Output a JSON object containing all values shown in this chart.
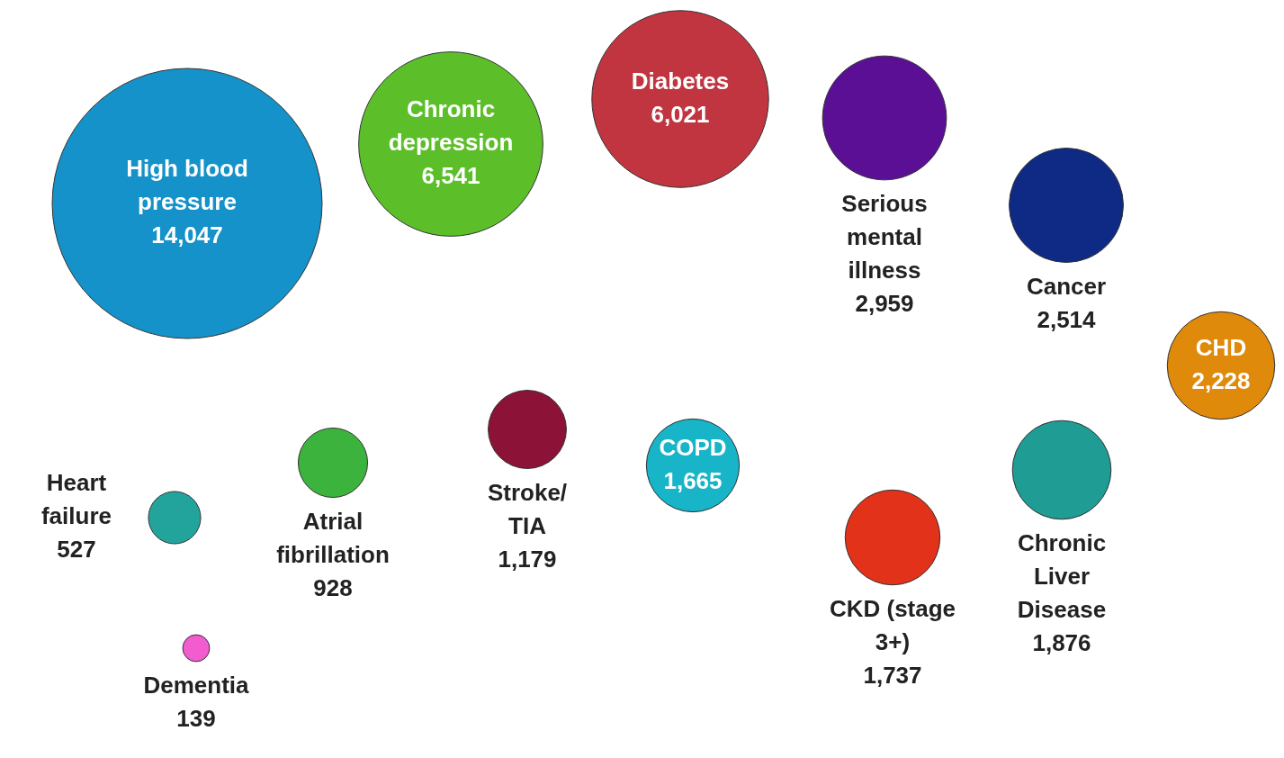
{
  "chart_data": {
    "type": "other",
    "categories": [
      "High blood pressure",
      "Chronic depression",
      "Diabetes",
      "Serious mental illness",
      "Cancer",
      "CHD",
      "Heart failure",
      "Dementia",
      "Atrial fibrillation",
      "Stroke/ TIA",
      "COPD",
      "CKD (stage 3+)",
      "Chronic Liver Disease"
    ],
    "values": [
      14047,
      6541,
      6021,
      2959,
      2514,
      2228,
      527,
      139,
      928,
      1179,
      1665,
      1737,
      1876
    ],
    "colors": [
      "#1592c9",
      "#5cbf2a",
      "#c0353f",
      "#5b0f94",
      "#0e2a85",
      "#e08a0c",
      "#22a49c",
      "#f25ccf",
      "#3cb33c",
      "#8d1237",
      "#18b4c8",
      "#e2321a",
      "#1f9c94"
    ],
    "value_labels": [
      "14,047",
      "6,541",
      "6,021",
      "2,959",
      "2,514",
      "2,228",
      "527",
      "139",
      "928",
      "1,179",
      "1,665",
      "1,737",
      "1,876"
    ]
  }
}
